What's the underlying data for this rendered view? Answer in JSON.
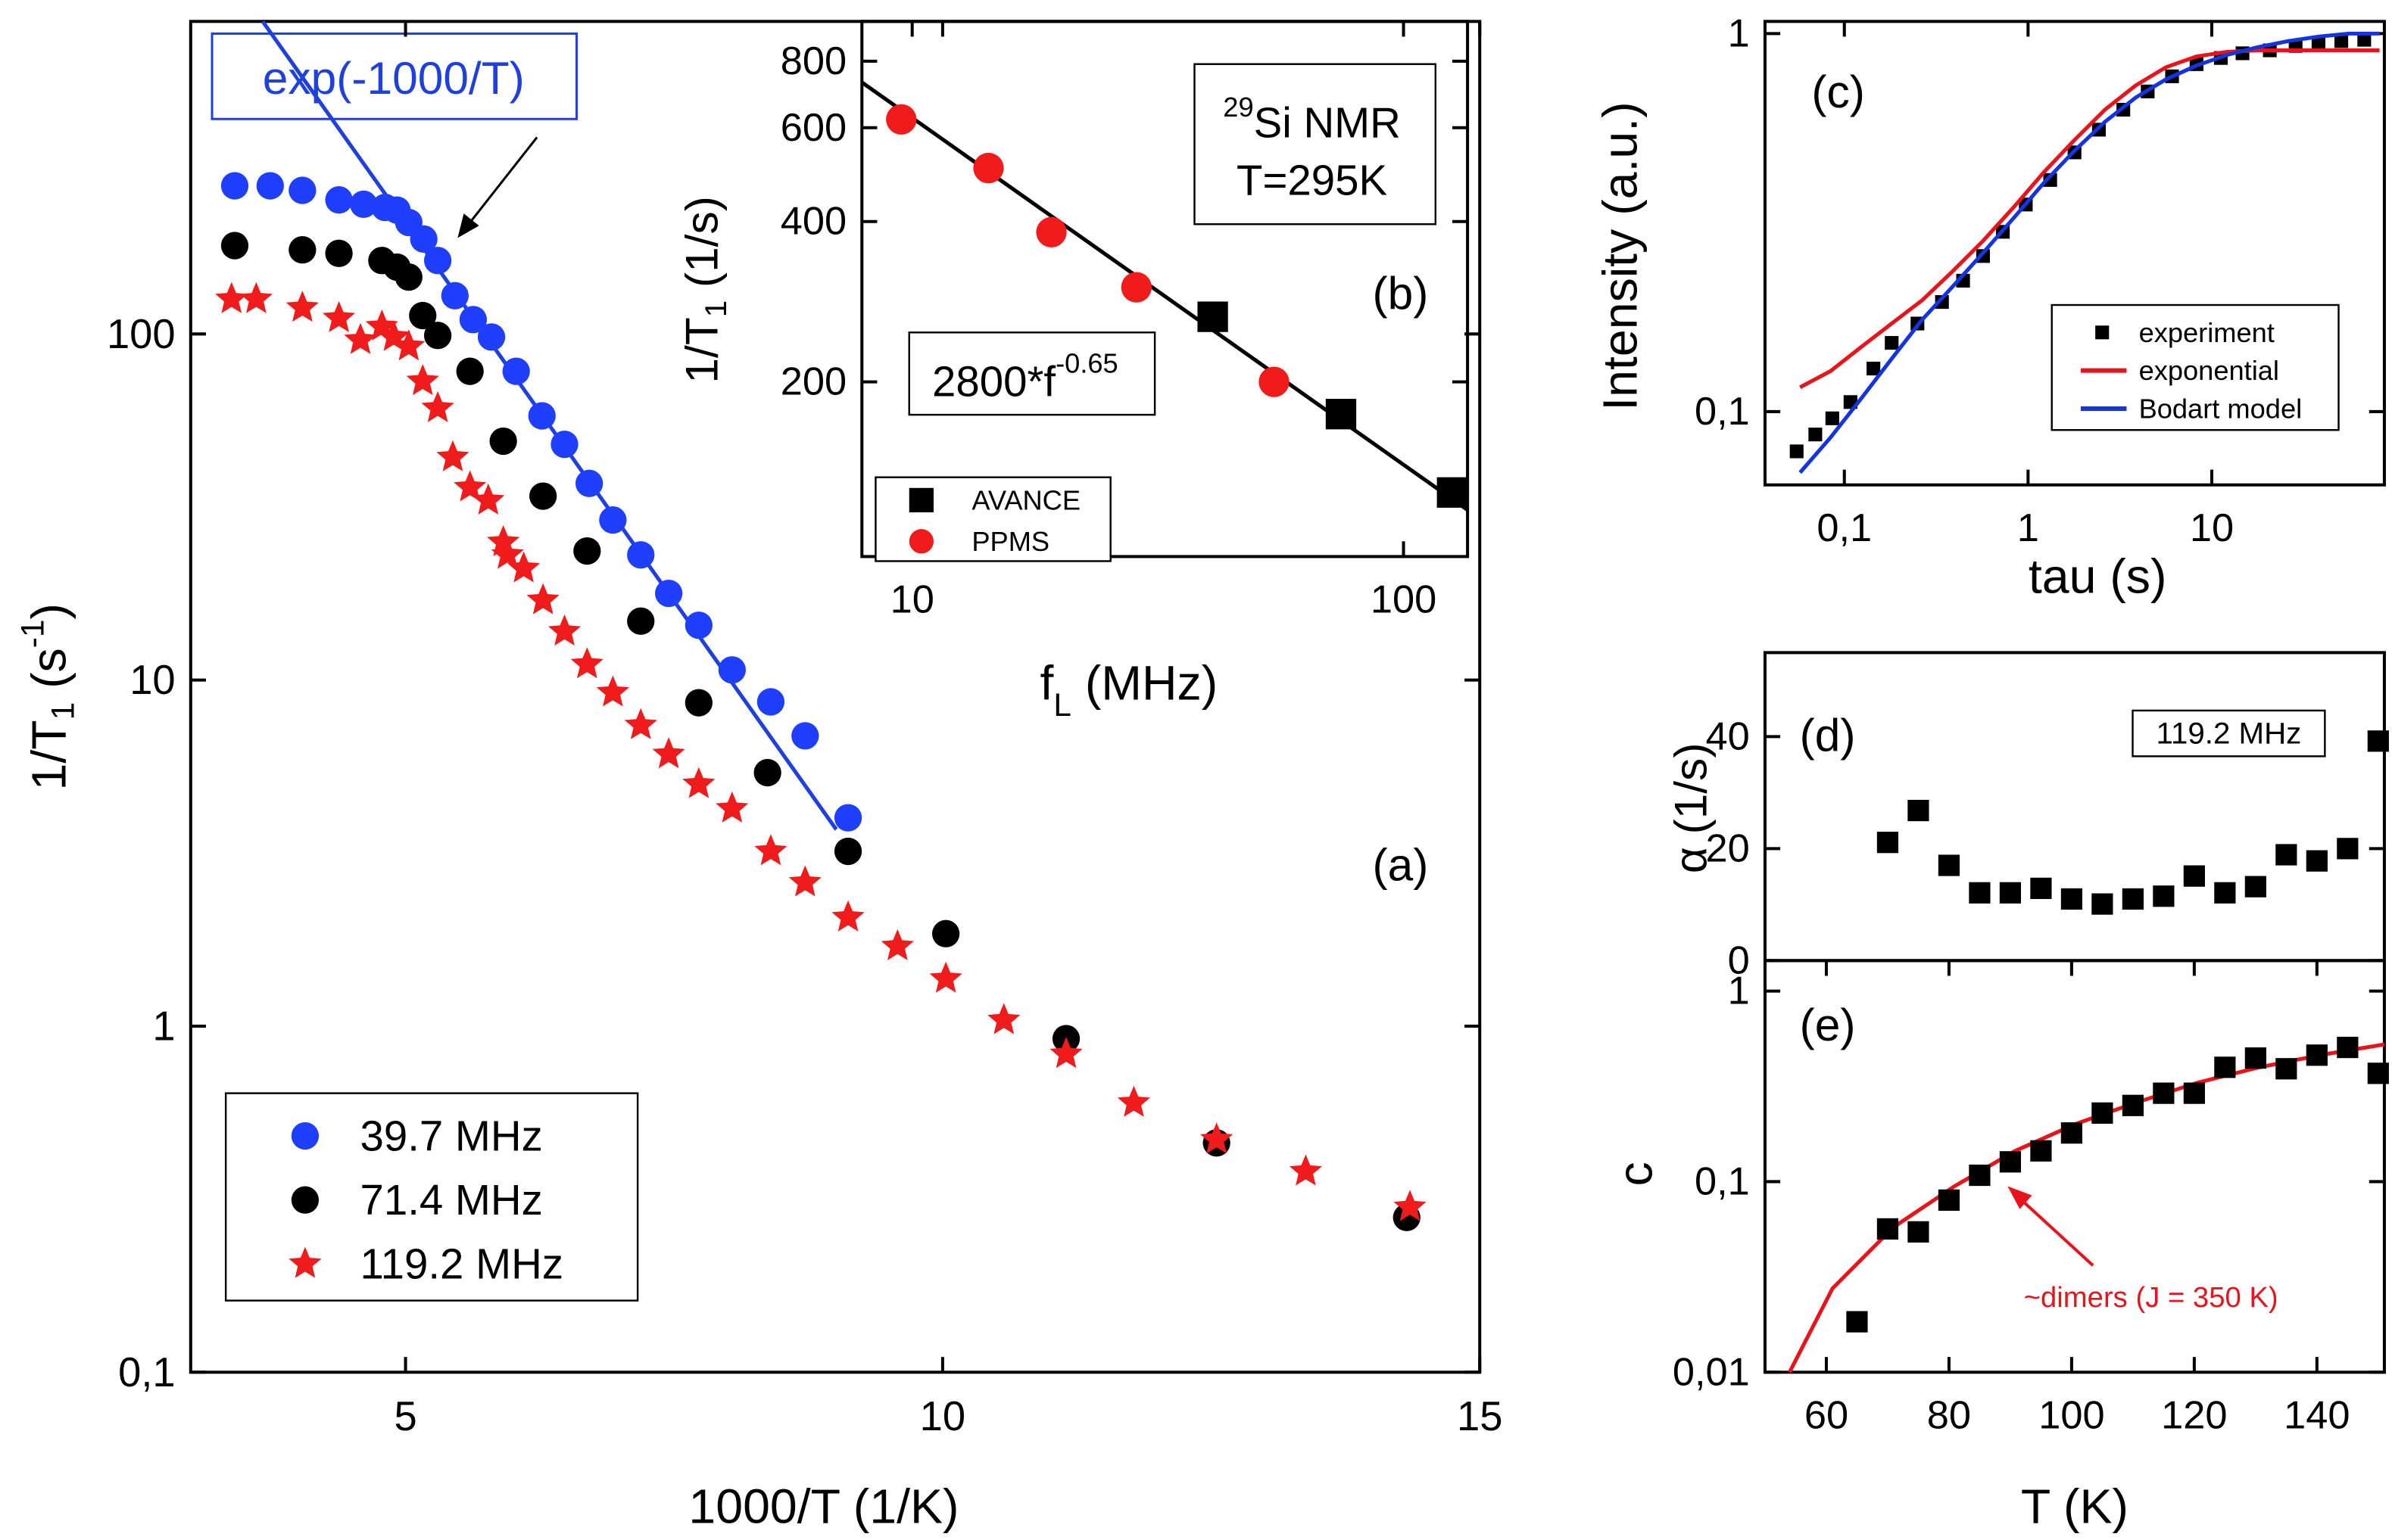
{
  "chart_data": [
    {
      "type": "scatter",
      "xlabel": "1000/T (1/K)",
      "ylabel": [
        "1/T",
        "1",
        " (s",
        "-1",
        ")"
      ],
      "annotations": [
        "exp(-1000/T)",
        "(a)"
      ],
      "xlim": [
        3,
        15
      ],
      "xticks": [
        5,
        10,
        15
      ],
      "ylim": [
        0.1,
        800
      ],
      "yscale": "log",
      "yticks": [
        {
          "value": 0.1,
          "label": "0,1"
        },
        1,
        10,
        100
      ],
      "legend": "lower left",
      "series": [
        {
          "name": "39.7 MHz",
          "color": "#1f3fff",
          "marker": "circle",
          "x": [
            3.41,
            3.74,
            4.04,
            4.38,
            4.61,
            4.81,
            4.92,
            5.03,
            5.17,
            5.3,
            5.46,
            5.63,
            5.8,
            6.03,
            6.27,
            6.48,
            6.71,
            6.93,
            7.19,
            7.45,
            7.73,
            8.04,
            8.4,
            8.72,
            9.12
          ],
          "values": [
            268,
            268,
            260,
            244,
            237,
            232,
            228,
            210,
            188,
            163,
            129,
            110,
            98,
            78,
            58,
            48,
            37,
            29,
            23,
            17.8,
            14.4,
            10.7,
            8.65,
            6.9,
            4.0
          ]
        },
        {
          "name": "71.4 MHz",
          "color": "#000000",
          "marker": "circle",
          "x": [
            3.41,
            4.04,
            4.38,
            4.78,
            4.92,
            5.03,
            5.16,
            5.3,
            5.6,
            5.91,
            6.28,
            6.69,
            7.19,
            7.73,
            8.37,
            9.12,
            10.03,
            11.15,
            12.55,
            14.32
          ],
          "values": [
            180,
            175,
            171,
            163,
            156,
            146,
            113,
            99,
            78,
            49,
            34,
            23.6,
            14.8,
            8.6,
            5.4,
            3.2,
            1.85,
            0.92,
            0.46,
            0.28
          ]
        },
        {
          "name": "119.2 MHz",
          "color": "#f01c1c",
          "marker": "star",
          "x": [
            3.38,
            3.61,
            4.04,
            4.38,
            4.58,
            4.78,
            4.89,
            5.03,
            5.16,
            5.3,
            5.44,
            5.6,
            5.77,
            5.91,
            5.95,
            6.1,
            6.28,
            6.48,
            6.69,
            6.93,
            7.19,
            7.45,
            7.73,
            8.04,
            8.4,
            8.72,
            9.12,
            9.58,
            10.03,
            10.57,
            11.15,
            11.78,
            12.55,
            13.38,
            14.35
          ],
          "values": [
            126,
            126,
            119,
            111,
            96,
            105,
            98,
            92,
            73,
            61,
            44,
            36,
            33,
            25,
            23,
            21,
            17,
            13.8,
            11.1,
            9.2,
            7.4,
            6.1,
            5.0,
            4.25,
            3.2,
            2.6,
            2.06,
            1.7,
            1.37,
            1.04,
            0.83,
            0.6,
            0.47,
            0.38,
            0.3
          ]
        }
      ],
      "fit": {
        "color": "#1f3fdf",
        "x": [
          3.67,
          9.01
        ],
        "values": [
          800,
          3.7
        ]
      }
    },
    {
      "type": "scatter",
      "xlabel": [
        "f",
        "L",
        " (MHz)"
      ],
      "ylabel": [
        "1/T",
        "1",
        " (1/s)"
      ],
      "annotations": [
        [
          "29",
          "Si NMR"
        ],
        "T=295K",
        "(b)",
        [
          "2800*f",
          "-0.65"
        ]
      ],
      "xlim": [
        7.9,
        135
      ],
      "xscale": "log",
      "xticks": [
        10,
        100
      ],
      "ylim": [
        94,
        950
      ],
      "yscale": "log",
      "yticks": [
        200,
        400,
        600,
        800
      ],
      "legend": "lower left",
      "series": [
        {
          "name": "AVANCE",
          "color": "#000000",
          "marker": "square",
          "x": [
            40.9,
            74.6,
            125.6
          ],
          "values": [
            265,
            174,
            124
          ]
        },
        {
          "name": "PPMS",
          "color": "#f01c1c",
          "marker": "circle",
          "x": [
            9.5,
            14.3,
            19.2,
            28.6,
            54.5
          ],
          "values": [
            622,
            504,
            382,
            301,
            200
          ]
        }
      ],
      "fit": {
        "color": "#000000",
        "x": [
          7.9,
          135
        ],
        "values": [
          730,
          115
        ]
      }
    },
    {
      "type": "scatter",
      "xlabel": "tau (s)",
      "ylabel": "Intensity (a.u.)",
      "annotations": [
        "(c)"
      ],
      "xlim": [
        0.037,
        87
      ],
      "xscale": "log",
      "xticks": [
        {
          "value": 0.1,
          "label": "0,1"
        },
        1,
        10
      ],
      "ylim": [
        0.064,
        1.077
      ],
      "yscale": "log",
      "yticks": [
        {
          "value": 0.1,
          "label": "0,1"
        },
        1
      ],
      "legend": "lower right",
      "series": [
        {
          "name": "experiment",
          "color": "#000000",
          "marker": "square",
          "x": [
            0.055,
            0.0695,
            0.086,
            0.108,
            0.144,
            0.181,
            0.25,
            0.34,
            0.443,
            0.569,
            0.729,
            0.972,
            1.32,
            1.79,
            2.43,
            3.3,
            4.48,
            6.08,
            8.26,
            11.2,
            14.7,
            20.7,
            28.6,
            38.1,
            50.7,
            67.6
          ],
          "values": [
            0.0785,
            0.087,
            0.096,
            0.106,
            0.13,
            0.152,
            0.171,
            0.195,
            0.222,
            0.258,
            0.299,
            0.353,
            0.41,
            0.485,
            0.557,
            0.629,
            0.703,
            0.771,
            0.83,
            0.862,
            0.887,
            0.903,
            0.928,
            0.946,
            0.955,
            0.963
          ]
        },
        {
          "name": "exponential",
          "color": "#e8141c",
          "mode": "line",
          "x": [
            0.0574,
            0.0841,
            0.123,
            0.181,
            0.265,
            0.388,
            0.569,
            0.834,
            1.22,
            1.79,
            2.62,
            3.85,
            5.64,
            8.26,
            12.1,
            17.7,
            26.0,
            38.1,
            55.8,
            81.8
          ],
          "values": [
            0.116,
            0.128,
            0.148,
            0.171,
            0.197,
            0.235,
            0.283,
            0.347,
            0.43,
            0.523,
            0.629,
            0.729,
            0.815,
            0.87,
            0.895,
            0.903,
            0.903,
            0.903,
            0.903,
            0.903
          ]
        },
        {
          "name": "Bodart model",
          "color": "#1434e0",
          "mode": "line",
          "x": [
            0.0574,
            0.0841,
            0.123,
            0.181,
            0.265,
            0.388,
            0.569,
            0.834,
            1.22,
            1.79,
            2.62,
            3.85,
            5.64,
            8.26,
            12.1,
            17.7,
            26.0,
            38.1,
            55.8,
            81.8
          ],
          "values": [
            0.069,
            0.0854,
            0.108,
            0.138,
            0.175,
            0.214,
            0.263,
            0.325,
            0.403,
            0.49,
            0.584,
            0.677,
            0.757,
            0.823,
            0.878,
            0.92,
            0.955,
            0.982,
            1.0,
            1.0
          ]
        }
      ]
    },
    {
      "type": "scatter",
      "ylabel": "α (1/s)",
      "annotations": [
        "(d)",
        "119.2 MHz"
      ],
      "xlim": [
        50,
        151
      ],
      "ylim": [
        0,
        55
      ],
      "yticks": [
        0,
        20,
        40
      ],
      "series": [
        {
          "color": "#000000",
          "marker": "square",
          "x": [
            70,
            75,
            80,
            85,
            90,
            95,
            100,
            105,
            110,
            115,
            120,
            125,
            130,
            135,
            140,
            145,
            150
          ],
          "values": [
            21.1,
            26.8,
            17.0,
            12.1,
            12.1,
            12.9,
            11.0,
            10.1,
            11.0,
            11.5,
            15.1,
            12.1,
            13.2,
            18.9,
            17.8,
            20.0,
            39.2
          ]
        }
      ]
    },
    {
      "type": "scatter",
      "xlabel": "T (K)",
      "ylabel": "c",
      "annotations": [
        "(e)",
        "~dimers (J = 350 K)"
      ],
      "xlim": [
        50,
        151
      ],
      "xticks": [
        60,
        80,
        100,
        120,
        140
      ],
      "ylim": [
        0.01,
        1.445
      ],
      "yscale": "log",
      "yticks": [
        {
          "value": 0.01,
          "label": "0,01"
        },
        {
          "value": 0.1,
          "label": "0,1"
        },
        1
      ],
      "series": [
        {
          "color": "#000000",
          "marker": "square",
          "x": [
            65,
            70,
            75,
            80,
            85,
            90,
            95,
            100,
            105,
            110,
            115,
            120,
            125,
            130,
            135,
            140,
            145,
            150
          ],
          "values": [
            0.0184,
            0.0565,
            0.0545,
            0.08,
            0.108,
            0.127,
            0.145,
            0.18,
            0.229,
            0.251,
            0.291,
            0.291,
            0.398,
            0.445,
            0.391,
            0.461,
            0.506,
            0.37
          ]
        }
      ],
      "fit": {
        "color": "#e8141c",
        "x": [
          54.0,
          61.0,
          70.9,
          80.9,
          90.8,
          100.7,
          110.7,
          120.6,
          130.6,
          140.5,
          151
        ],
        "values": [
          0.01,
          0.0275,
          0.0575,
          0.0946,
          0.145,
          0.201,
          0.261,
          0.331,
          0.398,
          0.461,
          0.525
        ]
      }
    }
  ]
}
